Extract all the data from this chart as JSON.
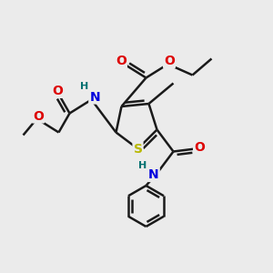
{
  "bg_color": "#ebebeb",
  "bond_color": "#1a1a1a",
  "bond_width": 1.8,
  "atom_colors": {
    "S": "#b8b800",
    "N": "#0000dd",
    "O": "#dd0000",
    "H": "#007070",
    "C": "#1a1a1a"
  },
  "font_size_atom": 10,
  "font_size_H": 8
}
